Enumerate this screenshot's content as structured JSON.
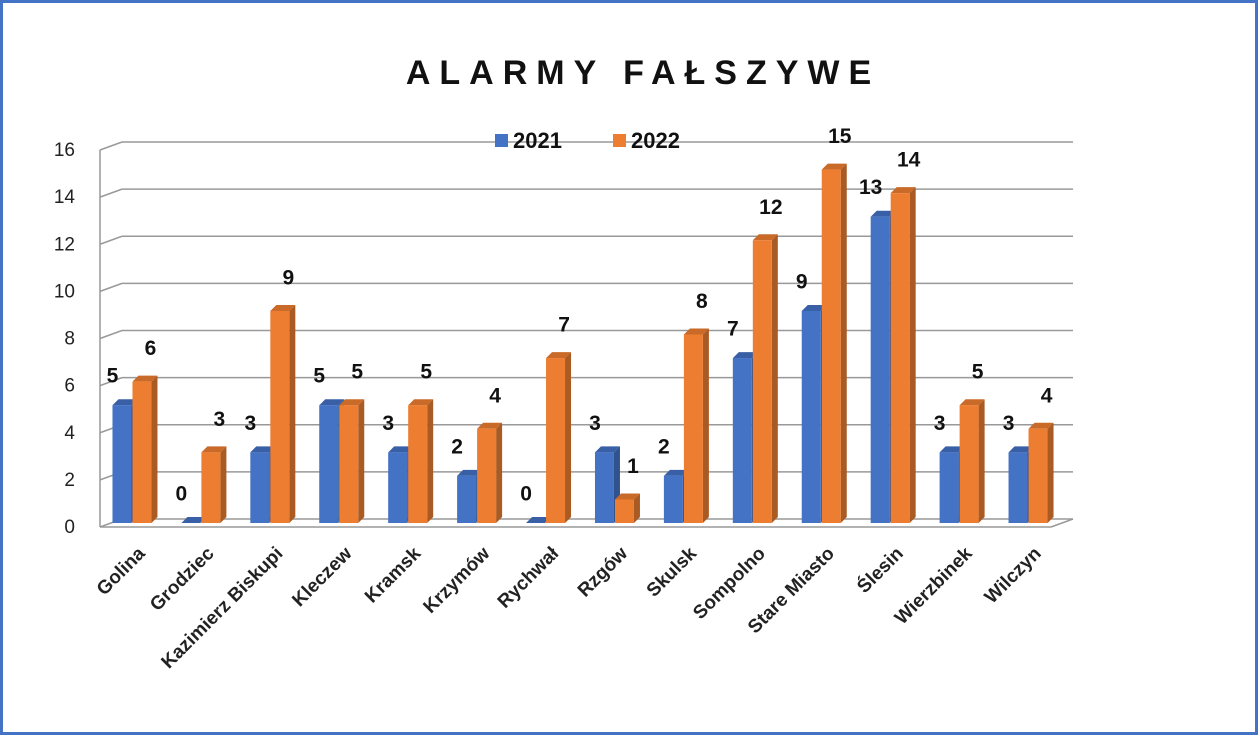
{
  "chart_data": {
    "type": "bar3d",
    "title": "ALARMY FAŁSZYWE",
    "categories": [
      "Golina",
      "Grodziec",
      "Kazimierz Biskupi",
      "Kleczew",
      "Kramsk",
      "Krzymów",
      "Rychwał",
      "Rzgów",
      "Skulsk",
      "Sompolno",
      "Stare Miasto",
      "Ślesin",
      "Wierzbinek",
      "Wilczyn"
    ],
    "series": [
      {
        "name": "2021",
        "color": "#4472c4",
        "values": [
          5,
          0,
          3,
          5,
          3,
          2,
          0,
          3,
          2,
          7,
          9,
          13,
          3,
          3
        ]
      },
      {
        "name": "2022",
        "color": "#ed7d31",
        "values": [
          6,
          3,
          9,
          5,
          5,
          4,
          7,
          1,
          8,
          12,
          15,
          14,
          5,
          4
        ]
      }
    ],
    "ylim": [
      0,
      16
    ],
    "yticks": [
      0,
      2,
      4,
      6,
      8,
      10,
      12,
      14,
      16
    ],
    "grid": true,
    "legend": "top"
  }
}
